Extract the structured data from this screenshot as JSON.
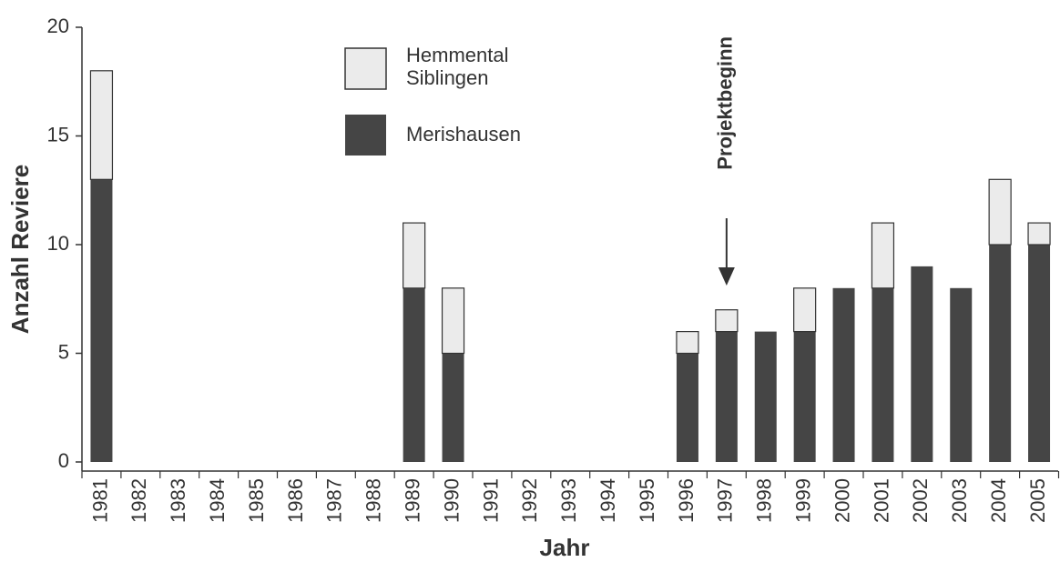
{
  "chart_data": {
    "type": "stacked_bar",
    "xlabel": "Jahr",
    "ylabel": "Anzahl Reviere",
    "categories": [
      "1981",
      "1982",
      "1983",
      "1984",
      "1985",
      "1986",
      "1987",
      "1988",
      "1989",
      "1990",
      "1991",
      "1992",
      "1993",
      "1994",
      "1995",
      "1996",
      "1997",
      "1998",
      "1999",
      "2000",
      "2001",
      "2002",
      "2003",
      "2004",
      "2005"
    ],
    "series": [
      {
        "name": "Merishausen",
        "color": "#454545",
        "values": [
          13,
          0,
          0,
          0,
          0,
          0,
          0,
          0,
          8,
          5,
          0,
          0,
          0,
          0,
          0,
          5,
          6,
          6,
          6,
          8,
          8,
          9,
          8,
          10,
          10
        ]
      },
      {
        "name": "Hemmental Siblingen",
        "color": "#ebebeb",
        "values": [
          5,
          0,
          0,
          0,
          0,
          0,
          0,
          0,
          3,
          3,
          0,
          0,
          0,
          0,
          0,
          1,
          1,
          0,
          2,
          0,
          3,
          0,
          0,
          3,
          1
        ]
      }
    ],
    "ylim": [
      0,
      20
    ],
    "yticks": [
      0,
      5,
      10,
      15,
      20
    ],
    "annotations": [
      {
        "text": "Projektbeginn",
        "x": "1997"
      }
    ]
  }
}
